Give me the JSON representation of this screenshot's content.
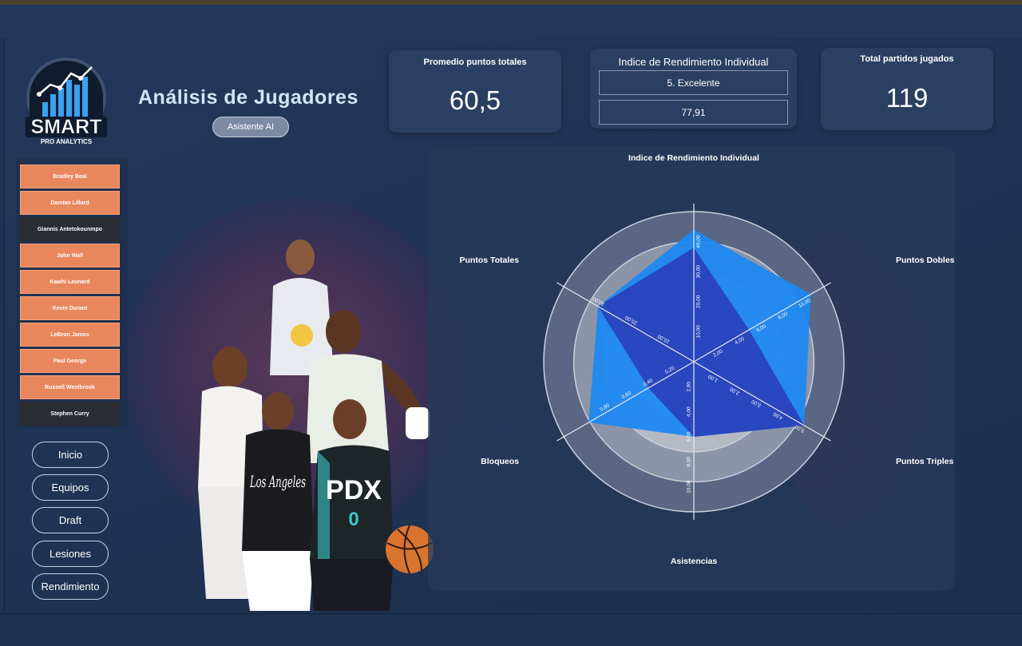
{
  "brand": {
    "name": "SMART",
    "tagline": "PRO ANALYTICS"
  },
  "header": {
    "title": "Análisis de Jugadores",
    "ai_button": "Asistente AI"
  },
  "kpis": {
    "avg_points": {
      "title": "Promedio puntos totales",
      "value": "60,5"
    },
    "iri": {
      "title": "Indice de Rendimiento Individual",
      "rating": "5. Excelente",
      "value": "77,91"
    },
    "games": {
      "title": "Total partidos jugados",
      "value": "119"
    }
  },
  "players": [
    {
      "name": "Bradley Beal",
      "selected": false
    },
    {
      "name": "Damian Lillard",
      "selected": false
    },
    {
      "name": "Giannis Antetokounmpo",
      "selected": true
    },
    {
      "name": "John Wall",
      "selected": false
    },
    {
      "name": "Kawhi Leonard",
      "selected": false
    },
    {
      "name": "Kevin Durant",
      "selected": false
    },
    {
      "name": "LeBron James",
      "selected": false
    },
    {
      "name": "Paul George",
      "selected": false
    },
    {
      "name": "Russell Westbrook",
      "selected": false
    },
    {
      "name": "Stephen Curry",
      "selected": true
    }
  ],
  "nav": {
    "inicio": "Inicio",
    "equipos": "Equipos",
    "draft": "Draft",
    "lesiones": "Lesiones",
    "rendimiento": "Rendimiento"
  },
  "art": {
    "jersey_pdx": "PDX",
    "number": "0",
    "la": "Los Angeles"
  },
  "chart_data": {
    "type": "radar",
    "axes": [
      {
        "label": "Indice de Rendimiento Individual",
        "max": 50,
        "ticks": [
          "10,00",
          "20,00",
          "30,00",
          "40,00"
        ]
      },
      {
        "label": "Puntos Dobles",
        "max": 12,
        "ticks": [
          "2,00",
          "4,00",
          "6,00",
          "8,00",
          "10,00"
        ]
      },
      {
        "label": "Puntos Triples",
        "max": 6,
        "ticks": [
          "1,00",
          "2,00",
          "3,00",
          "4,00",
          "5,00"
        ]
      },
      {
        "label": "Asistencias",
        "max": 12,
        "ticks": [
          "2,00",
          "4,00",
          "6,00",
          "8,00",
          "10,00"
        ]
      },
      {
        "label": "Bloqueos",
        "max": 1.2,
        "ticks": [
          "0,20",
          "0,40",
          "0,60",
          "0,80"
        ]
      },
      {
        "label": "Puntos Totales",
        "max": 40,
        "ticks": [
          "10,00",
          "20,00",
          "30,00"
        ]
      }
    ],
    "series": [
      {
        "values": [
          44,
          10.8,
          5.1,
          6,
          0.97,
          29.5
        ],
        "color": "#1e88f0"
      },
      {
        "values": [
          38,
          5.1,
          5.1,
          6,
          0.42,
          29.5
        ],
        "color": "#2a3fb8"
      }
    ],
    "colors": {
      "ring_outer": "#5a6684",
      "ring_mid": "#8c94a8",
      "ring_inner": "#b4b9c4",
      "center": "#cfd2d8"
    }
  }
}
